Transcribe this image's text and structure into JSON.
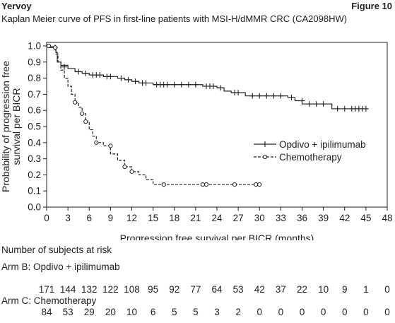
{
  "header": {
    "drug": "Yervoy",
    "figure": "Figure 10",
    "subtitle": "Kaplan Meier curve of PFS in first-line patients with MSI-H/dMMR CRC (CA2098HW)"
  },
  "chart_data": {
    "type": "line",
    "xlabel": "Progression free survival per BICR (months)",
    "ylabel": [
      "Probability of progression free",
      "survival per BICR"
    ],
    "xlim": [
      0,
      48
    ],
    "ylim": [
      0.0,
      1.0
    ],
    "xticks": [
      0,
      3,
      6,
      9,
      12,
      15,
      18,
      21,
      24,
      27,
      30,
      33,
      36,
      39,
      42,
      45,
      48
    ],
    "yticks": [
      "0.0",
      "0.1",
      "0.2",
      "0.3",
      "0.4",
      "0.5",
      "0.6",
      "0.7",
      "0.8",
      "0.9",
      "1.0"
    ],
    "legend_position": "right",
    "series": [
      {
        "name": "Opdivo + ipilimumab",
        "marker": "plus",
        "line_style": "solid",
        "steps": [
          [
            0,
            1.0
          ],
          [
            0.5,
            0.995
          ],
          [
            1,
            0.99
          ],
          [
            1.3,
            0.96
          ],
          [
            1.5,
            0.9
          ],
          [
            2,
            0.88
          ],
          [
            3,
            0.86
          ],
          [
            4,
            0.84
          ],
          [
            5,
            0.83
          ],
          [
            6,
            0.82
          ],
          [
            8,
            0.81
          ],
          [
            10,
            0.8
          ],
          [
            11,
            0.79
          ],
          [
            12,
            0.78
          ],
          [
            13,
            0.77
          ],
          [
            15,
            0.76
          ],
          [
            22,
            0.75
          ],
          [
            24,
            0.74
          ],
          [
            25,
            0.72
          ],
          [
            26,
            0.71
          ],
          [
            28,
            0.69
          ],
          [
            34,
            0.68
          ],
          [
            35,
            0.66
          ],
          [
            36,
            0.64
          ],
          [
            40,
            0.64
          ],
          [
            40.2,
            0.61
          ],
          [
            45,
            0.61
          ]
        ],
        "censors": [
          [
            1.2,
            0.99
          ],
          [
            2.5,
            0.87
          ],
          [
            4.5,
            0.84
          ],
          [
            5.5,
            0.83
          ],
          [
            6.5,
            0.82
          ],
          [
            7,
            0.82
          ],
          [
            7.5,
            0.82
          ],
          [
            8.5,
            0.81
          ],
          [
            9,
            0.81
          ],
          [
            10.5,
            0.8
          ],
          [
            11.5,
            0.79
          ],
          [
            12.5,
            0.78
          ],
          [
            13.5,
            0.77
          ],
          [
            14,
            0.77
          ],
          [
            15.5,
            0.76
          ],
          [
            16,
            0.76
          ],
          [
            16.5,
            0.76
          ],
          [
            17,
            0.76
          ],
          [
            18,
            0.76
          ],
          [
            19,
            0.76
          ],
          [
            20,
            0.76
          ],
          [
            21,
            0.76
          ],
          [
            22.5,
            0.75
          ],
          [
            23,
            0.75
          ],
          [
            23.5,
            0.75
          ],
          [
            24.5,
            0.74
          ],
          [
            26.5,
            0.71
          ],
          [
            27,
            0.71
          ],
          [
            29,
            0.69
          ],
          [
            30,
            0.69
          ],
          [
            31,
            0.69
          ],
          [
            32,
            0.69
          ],
          [
            33,
            0.69
          ],
          [
            34.5,
            0.68
          ],
          [
            36,
            0.66
          ],
          [
            37,
            0.64
          ],
          [
            38,
            0.64
          ],
          [
            39,
            0.64
          ],
          [
            41,
            0.61
          ],
          [
            42,
            0.61
          ],
          [
            43,
            0.61
          ],
          [
            43.5,
            0.61
          ],
          [
            44,
            0.61
          ],
          [
            44.5,
            0.61
          ],
          [
            45,
            0.61
          ]
        ]
      },
      {
        "name": "Chemotherapy",
        "marker": "circle",
        "line_style": "dashed",
        "steps": [
          [
            0,
            1.0
          ],
          [
            0.5,
            0.99
          ],
          [
            1,
            0.99
          ],
          [
            1.3,
            0.95
          ],
          [
            1.6,
            0.9
          ],
          [
            2,
            0.85
          ],
          [
            2.5,
            0.8
          ],
          [
            3,
            0.75
          ],
          [
            3.5,
            0.7
          ],
          [
            4,
            0.65
          ],
          [
            4.5,
            0.62
          ],
          [
            5,
            0.58
          ],
          [
            5.5,
            0.53
          ],
          [
            6,
            0.48
          ],
          [
            6.5,
            0.44
          ],
          [
            7,
            0.4
          ],
          [
            8,
            0.38
          ],
          [
            9,
            0.33
          ],
          [
            10,
            0.29
          ],
          [
            11,
            0.25
          ],
          [
            12,
            0.22
          ],
          [
            13,
            0.2
          ],
          [
            14,
            0.17
          ],
          [
            15,
            0.14
          ],
          [
            30,
            0.14
          ]
        ],
        "censors": [
          [
            0.3,
            1.0
          ],
          [
            1.2,
            0.99
          ],
          [
            4,
            0.65
          ],
          [
            5,
            0.58
          ],
          [
            5.5,
            0.53
          ],
          [
            7,
            0.4
          ],
          [
            9,
            0.38
          ],
          [
            11,
            0.25
          ],
          [
            12,
            0.22
          ],
          [
            16.5,
            0.14
          ],
          [
            22,
            0.14
          ],
          [
            22.5,
            0.14
          ],
          [
            26.5,
            0.14
          ],
          [
            29.5,
            0.14
          ],
          [
            30,
            0.14
          ]
        ]
      }
    ]
  },
  "risk_table": {
    "title": "Number of subjects at risk",
    "arms": [
      {
        "label": "Arm B: Opdivo + ipilimumab",
        "values": [
          171,
          144,
          132,
          122,
          108,
          95,
          92,
          77,
          64,
          53,
          42,
          37,
          22,
          10,
          9,
          1,
          0
        ]
      },
      {
        "label": "Arm C: Chemotherapy",
        "values": [
          84,
          53,
          29,
          20,
          10,
          6,
          5,
          5,
          3,
          2,
          0,
          0,
          0,
          0,
          0,
          0,
          0
        ]
      }
    ]
  }
}
